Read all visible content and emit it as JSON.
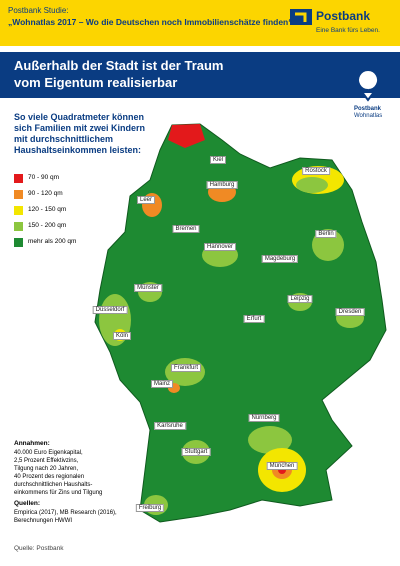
{
  "header": {
    "label": "Postbank Studie:",
    "subtitle": "„Wohnatlas 2017 – Wo die Deutschen noch Immobilienschätze finden“"
  },
  "brand": {
    "name": "Postbank",
    "tagline": "Eine Bank fürs Leben."
  },
  "title": {
    "line1": "Außerhalb der Stadt ist der Traum",
    "line2": "vom Eigentum realisierbar"
  },
  "badge": {
    "name": "Postbank",
    "sub": "Wohnatlas"
  },
  "question": [
    "So viele Quadratmeter können",
    "sich Familien mit zwei Kindern",
    "mit durchschnittlichem",
    "Haushaltseinkommen leisten:"
  ],
  "legend": [
    {
      "label": "70 - 90 qm",
      "color": "#e3191b"
    },
    {
      "label": "90 - 120 qm",
      "color": "#f08a24"
    },
    {
      "label": "120 - 150 qm",
      "color": "#f3e600"
    },
    {
      "label": "150 - 200 qm",
      "color": "#8cc63f"
    },
    {
      "label": "mehr als 200 qm",
      "color": "#1e8a32"
    }
  ],
  "cities": [
    "Kiel",
    "Rostock",
    "Hamburg",
    "Leer",
    "Bremen",
    "Berlin",
    "Hannover",
    "Magdeburg",
    "Münster",
    "Leipzig",
    "Düsseldorf",
    "Dresden",
    "Erfurt",
    "Köln",
    "Frankfurt",
    "Mainz",
    "Karlsruhe",
    "Nürnberg",
    "Stuttgart",
    "München",
    "Freiburg"
  ],
  "assumptions": {
    "title": "Annahmen:",
    "lines": [
      "40.000 Euro Eigenkapital,",
      "2,5 Prozent Effektivzins,",
      "Tilgung nach 20 Jahren,",
      "40 Prozent des regionalen",
      "durchschnittlichen Haushalts-",
      "einkommens für Zins und Tilgung"
    ]
  },
  "sources": {
    "title": "Quellen:",
    "lines": [
      "Empirica (2017), MB Research (2016),",
      "Berechnungen HWWI"
    ]
  },
  "footer": "Quelle: Postbank"
}
